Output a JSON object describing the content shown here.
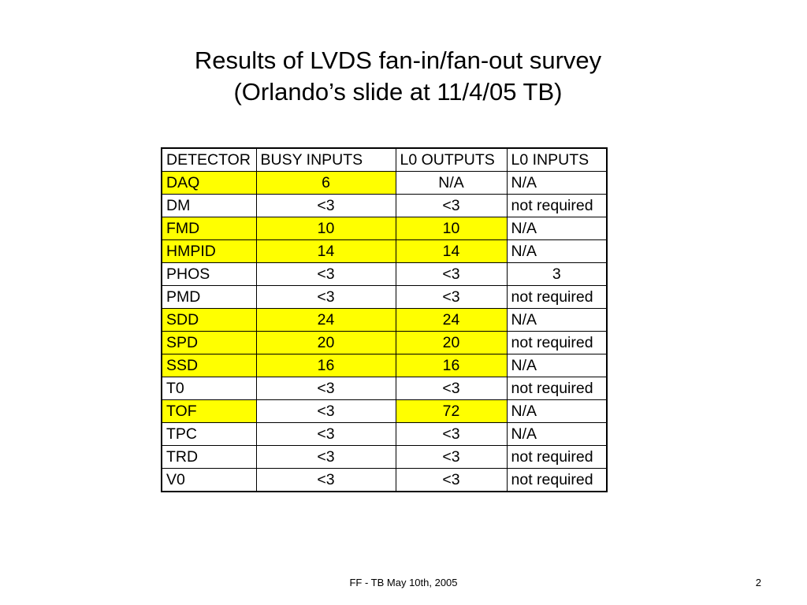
{
  "slide": {
    "title_line1": "Results of LVDS fan-in/fan-out survey",
    "title_line2": "(Orlando’s slide at 11/4/05 TB)",
    "footer_text": "FF - TB May 10th, 2005",
    "page_number": "2"
  },
  "colors": {
    "highlight": "#ffff00",
    "border": "#000000"
  },
  "table": {
    "headers": [
      "DETECTOR",
      "BUSY INPUTS",
      "L0 OUTPUTS",
      "L0 INPUTS"
    ],
    "rows": [
      {
        "detector": "DAQ",
        "busy_inputs": "6",
        "l0_outputs": "N/A",
        "l0_inputs": "N/A"
      },
      {
        "detector": "DM",
        "busy_inputs": "<3",
        "l0_outputs": "<3",
        "l0_inputs": "not required"
      },
      {
        "detector": "FMD",
        "busy_inputs": "10",
        "l0_outputs": "10",
        "l0_inputs": "N/A"
      },
      {
        "detector": "HMPID",
        "busy_inputs": "14",
        "l0_outputs": "14",
        "l0_inputs": "N/A"
      },
      {
        "detector": "PHOS",
        "busy_inputs": "<3",
        "l0_outputs": "<3",
        "l0_inputs": "3"
      },
      {
        "detector": "PMD",
        "busy_inputs": "<3",
        "l0_outputs": "<3",
        "l0_inputs": "not required"
      },
      {
        "detector": "SDD",
        "busy_inputs": "24",
        "l0_outputs": "24",
        "l0_inputs": "N/A"
      },
      {
        "detector": "SPD",
        "busy_inputs": "20",
        "l0_outputs": "20",
        "l0_inputs": "not required"
      },
      {
        "detector": "SSD",
        "busy_inputs": "16",
        "l0_outputs": "16",
        "l0_inputs": "N/A"
      },
      {
        "detector": "T0",
        "busy_inputs": "<3",
        "l0_outputs": "<3",
        "l0_inputs": "not required"
      },
      {
        "detector": "TOF",
        "busy_inputs": "<3",
        "l0_outputs": "72",
        "l0_inputs": "N/A"
      },
      {
        "detector": "TPC",
        "busy_inputs": "<3",
        "l0_outputs": "<3",
        "l0_inputs": "N/A"
      },
      {
        "detector": "TRD",
        "busy_inputs": "<3",
        "l0_outputs": "<3",
        "l0_inputs": "not required"
      },
      {
        "detector": "V0",
        "busy_inputs": "<3",
        "l0_outputs": "<3",
        "l0_inputs": "not required"
      }
    ]
  }
}
